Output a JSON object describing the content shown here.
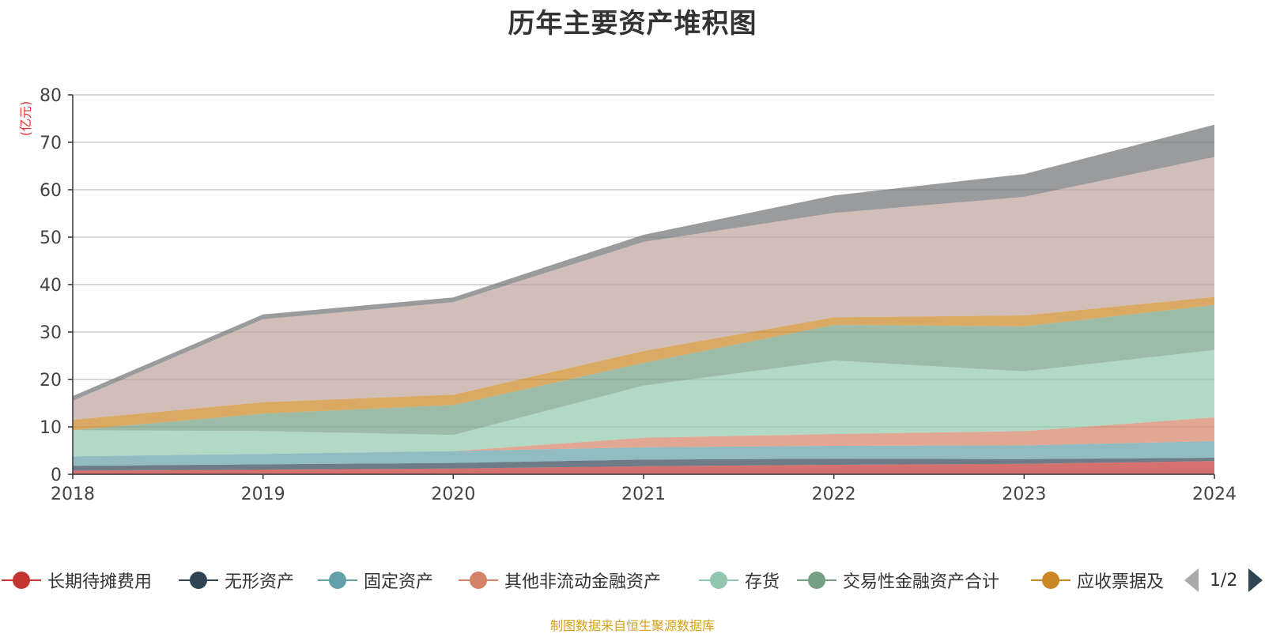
{
  "title": "历年主要资产堆积图",
  "unit_label": "(亿元)",
  "source": "制图数据来自恒生聚源数据库",
  "pager": {
    "text": "1/2"
  },
  "legend": [
    {
      "name": "长期待摊费用",
      "color": "#c23531"
    },
    {
      "name": "无形资产",
      "color": "#2f4554"
    },
    {
      "name": "固定资产",
      "color": "#61a0a8"
    },
    {
      "name": "其他非流动金融资产",
      "color": "#d48265"
    },
    {
      "name": "存货",
      "color": "#91c7ae"
    },
    {
      "name": "交易性金融资产合计",
      "color": "#749f83"
    },
    {
      "name": "应收票据及",
      "color": "#ca8622"
    }
  ],
  "chart_data": {
    "type": "area",
    "stacked": true,
    "x": [
      "2018",
      "2019",
      "2020",
      "2021",
      "2022",
      "2023",
      "2024"
    ],
    "ylim": [
      0,
      80
    ],
    "yticks": [
      0,
      10,
      20,
      30,
      40,
      50,
      60,
      70,
      80
    ],
    "ylabel": "(亿元)",
    "grid": true,
    "series": [
      {
        "name": "长期待摊费用",
        "color": "#c23531",
        "values": [
          0.8,
          1.0,
          1.2,
          1.7,
          2.0,
          2.2,
          2.8
        ]
      },
      {
        "name": "无形资产",
        "color": "#2f4554",
        "values": [
          1.0,
          1.1,
          1.2,
          1.4,
          1.3,
          1.0,
          0.7
        ]
      },
      {
        "name": "固定资产",
        "color": "#61a0a8",
        "values": [
          2.0,
          2.2,
          2.5,
          2.6,
          2.7,
          2.9,
          3.5
        ]
      },
      {
        "name": "其他非流动金融资产",
        "color": "#d48265",
        "values": [
          0.0,
          0.0,
          0.0,
          2.0,
          2.5,
          3.0,
          5.0
        ]
      },
      {
        "name": "存货",
        "color": "#91c7ae",
        "values": [
          5.5,
          4.8,
          3.4,
          11.0,
          15.5,
          12.6,
          14.2
        ]
      },
      {
        "name": "交易性金融资产合计",
        "color": "#749f83",
        "values": [
          0.0,
          3.7,
          6.3,
          4.8,
          7.5,
          9.5,
          9.5
        ]
      },
      {
        "name": "应收票据及",
        "color": "#ca8622",
        "values": [
          2.2,
          2.4,
          2.2,
          2.5,
          1.6,
          2.3,
          1.7
        ]
      },
      {
        "color": "#bda29a",
        "values": [
          4.0,
          17.5,
          19.5,
          23.0,
          22.0,
          25.0,
          29.5
        ]
      },
      {
        "color": "#6e7074",
        "values": [
          1.0,
          1.0,
          1.0,
          1.5,
          3.7,
          4.8,
          6.8
        ]
      }
    ]
  }
}
